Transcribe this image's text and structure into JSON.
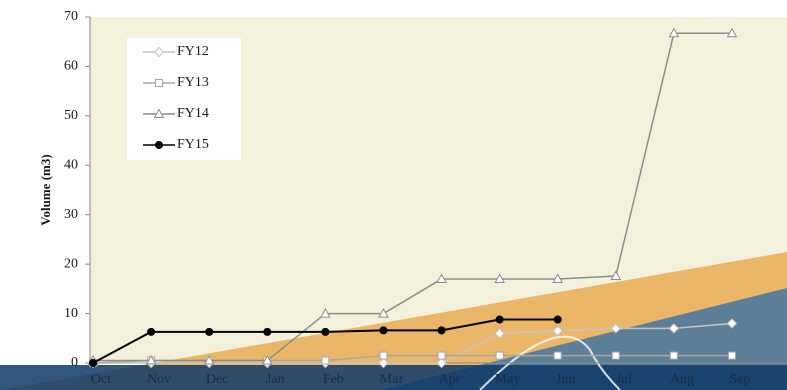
{
  "chart_data": {
    "type": "line",
    "y_label": "Volume (m3)",
    "categories": [
      "Oct",
      "Nov",
      "Dec",
      "Jan",
      "Feb",
      "Mar",
      "Apr",
      "May",
      "Jun",
      "Jul",
      "Aug",
      "Sep"
    ],
    "series": [
      {
        "name": "FY12",
        "color": "#c4c4c4",
        "marker": "diamond",
        "values": [
          0,
          0,
          0,
          0,
          0,
          0,
          0,
          6,
          6.5,
          7,
          7,
          8
        ]
      },
      {
        "name": "FY13",
        "color": "#a6a6a6",
        "marker": "square",
        "values": [
          0,
          0.5,
          0.5,
          0.5,
          0.5,
          1.5,
          1.5,
          1.5,
          1.5,
          1.5,
          1.5,
          1.5
        ]
      },
      {
        "name": "FY14",
        "color": "#8c8c8c",
        "marker": "triangle",
        "values": [
          0.5,
          0.5,
          0.5,
          0.5,
          10,
          10,
          17,
          17,
          17,
          17.6,
          66.7,
          66.7
        ]
      },
      {
        "name": "FY15",
        "color": "#000000",
        "marker": "circle",
        "values": [
          0,
          6.3,
          6.3,
          6.3,
          6.3,
          6.6,
          6.6,
          8.8,
          8.8,
          null,
          null,
          null
        ]
      }
    ],
    "ylim": [
      0,
      70
    ],
    "yticks": [
      0,
      10,
      20,
      30,
      40,
      50,
      60,
      70
    ],
    "legend": "top-left"
  }
}
